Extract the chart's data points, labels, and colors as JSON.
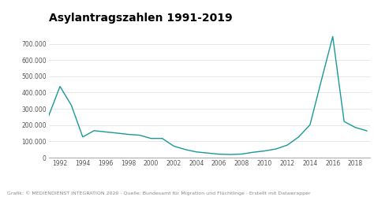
{
  "title": "Asylantragszahlen 1991-2019",
  "caption": "Grafik: © MEDIENDIENST INTEGRATION 2020 · Quelle: Bundesamt für Migration und Flüchtlinge · Erstellt mit Datawrapper",
  "years": [
    1991,
    1992,
    1993,
    1994,
    1995,
    1996,
    1997,
    1998,
    1999,
    2000,
    2001,
    2002,
    2003,
    2004,
    2005,
    2006,
    2007,
    2008,
    2009,
    2010,
    2011,
    2012,
    2013,
    2014,
    2015,
    2016,
    2017,
    2018,
    2019
  ],
  "values": [
    256000,
    438000,
    322000,
    127000,
    166000,
    158000,
    151000,
    143000,
    138000,
    118000,
    118000,
    71000,
    50000,
    35000,
    28000,
    21000,
    19000,
    22000,
    33000,
    41000,
    53000,
    77000,
    127000,
    202000,
    476000,
    745000,
    222000,
    185000,
    165000
  ],
  "line_color": "#1a9899",
  "bg_color": "#ffffff",
  "plot_bg_color": "#ffffff",
  "ylim": [
    0,
    800000
  ],
  "yticks": [
    0,
    100000,
    200000,
    300000,
    400000,
    500000,
    600000,
    700000
  ],
  "xticks": [
    1992,
    1994,
    1996,
    1998,
    2000,
    2002,
    2004,
    2006,
    2008,
    2010,
    2012,
    2014,
    2016,
    2018
  ],
  "title_fontsize": 10,
  "tick_fontsize": 5.5,
  "caption_fontsize": 4.5,
  "grid_color": "#dddddd",
  "bottom_line_color": "#999999"
}
